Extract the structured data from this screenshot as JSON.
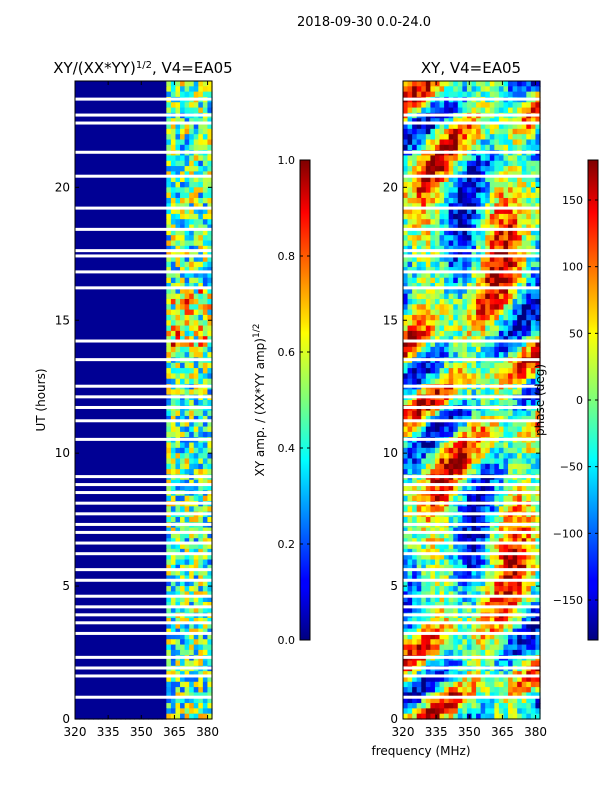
{
  "figure": {
    "suptitle": "2018-09-30 0.0-24.0",
    "shared_xlabel": "frequency (MHz)"
  },
  "chart_data": [
    {
      "type": "heatmap",
      "title": "XY/(XX*YY)",
      "title_exponent": "1/2",
      "title_suffix": ", V4=EA05",
      "xlabel": "",
      "ylabel": "UT (hours)",
      "xlim": [
        320,
        382
      ],
      "ylim": [
        0,
        24
      ],
      "x_ticks": [
        320,
        335,
        350,
        365,
        380
      ],
      "y_ticks": [
        0,
        5,
        10,
        15,
        20
      ],
      "x_tick_labels": [
        "320",
        "335",
        "350",
        "365",
        "380"
      ],
      "y_tick_labels": [
        "0",
        "5",
        "10",
        "15",
        "20"
      ],
      "colorbar": {
        "label": "XY amp. / (XX*YY amp)",
        "label_exponent": "1/2",
        "range": [
          0.0,
          1.0
        ],
        "ticks": [
          0.0,
          0.2,
          0.4,
          0.6,
          0.8,
          1.0
        ],
        "tick_labels": [
          "0.0",
          "0.2",
          "0.4",
          "0.6",
          "0.8",
          "1.0"
        ],
        "colormap": "jet"
      },
      "description_values": {
        "low_band_mhz": [
          320,
          360
        ],
        "low_band_level": 0.02,
        "high_band_mhz": [
          361,
          380
        ],
        "high_band_level_range": [
          0.2,
          0.9
        ],
        "flagged_ut_hours": [
          0.8,
          1.6,
          1.9,
          2.3,
          3.2,
          3.6,
          3.9,
          4.2,
          4.6,
          5.2,
          5.6,
          6.2,
          6.6,
          7.0,
          7.3,
          7.7,
          8.1,
          8.5,
          8.8,
          9.1,
          10.5,
          11.2,
          11.7,
          12.1,
          12.5,
          13.5,
          14.2,
          16.2,
          16.8,
          17.4,
          17.6,
          18.4,
          19.2,
          20.4,
          21.3,
          22.4,
          22.7,
          23.3
        ]
      }
    },
    {
      "type": "heatmap",
      "title": "XY, V4=EA05",
      "xlabel": "frequency (MHz)",
      "ylabel": "",
      "xlim": [
        320,
        382
      ],
      "ylim": [
        0,
        24
      ],
      "x_ticks": [
        320,
        335,
        350,
        365,
        380
      ],
      "y_ticks": [
        0,
        5,
        10,
        15,
        20
      ],
      "x_tick_labels": [
        "320",
        "335",
        "350",
        "365",
        "380"
      ],
      "y_tick_labels": [
        "0",
        "5",
        "10",
        "15",
        "20"
      ],
      "colorbar": {
        "label": "phase (deg)",
        "range": [
          -180,
          180
        ],
        "ticks": [
          -150,
          -100,
          -50,
          0,
          50,
          100,
          150
        ],
        "tick_labels": [
          "−150",
          "−100",
          "−50",
          "0",
          "50",
          "100",
          "150"
        ],
        "colormap": "jet"
      },
      "description_values": {
        "phase_range_deg": [
          -180,
          180
        ],
        "flagged_ut_hours": [
          0.8,
          1.6,
          1.9,
          2.3,
          3.2,
          3.6,
          3.9,
          4.2,
          4.6,
          5.2,
          5.6,
          6.2,
          6.6,
          7.0,
          7.3,
          7.7,
          8.1,
          8.5,
          8.8,
          9.1,
          10.5,
          11.2,
          11.7,
          12.1,
          12.5,
          13.5,
          14.2,
          16.2,
          16.8,
          17.4,
          17.6,
          18.4,
          19.2,
          20.4,
          21.3,
          22.4,
          22.7,
          23.3
        ]
      }
    }
  ]
}
